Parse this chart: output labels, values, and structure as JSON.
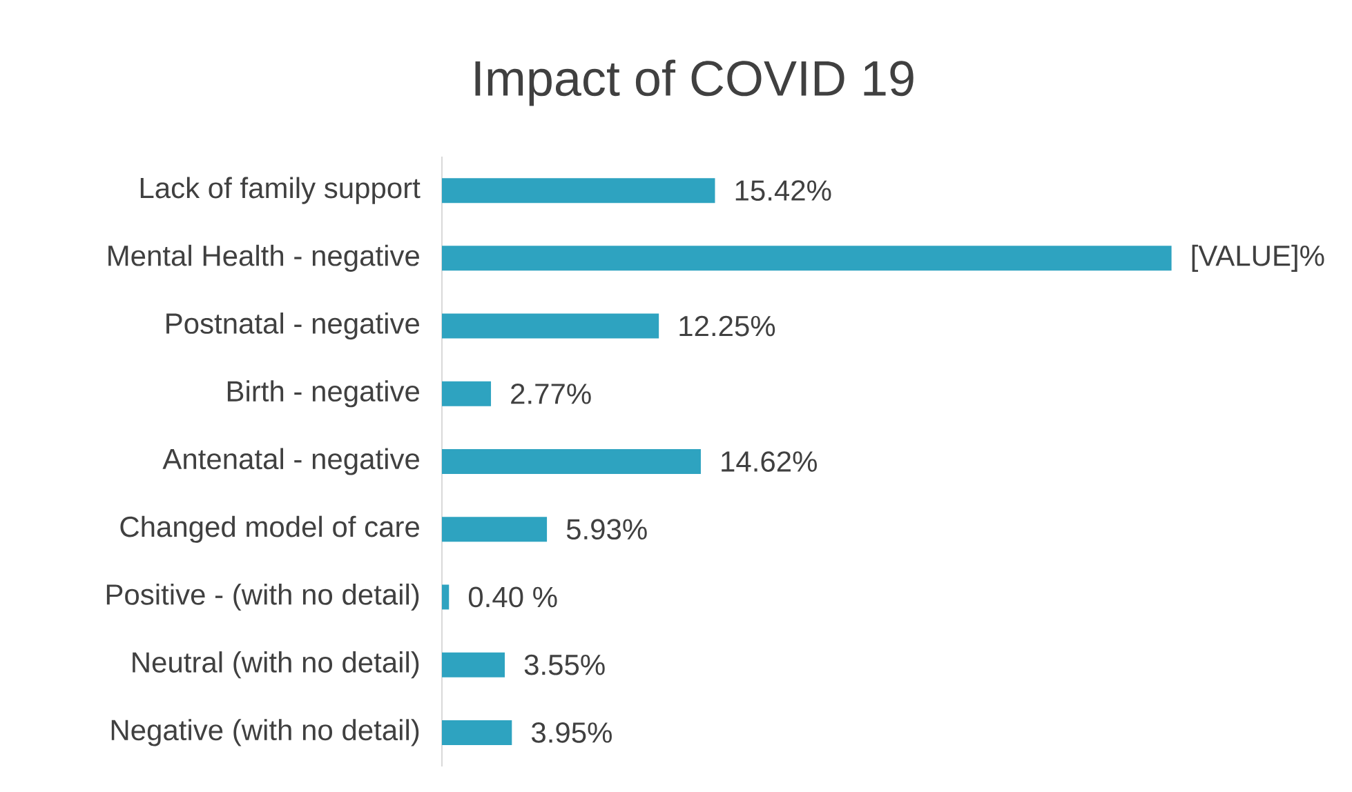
{
  "chart_data": {
    "type": "bar",
    "orientation": "horizontal",
    "title": "Impact of COVID 19",
    "categories": [
      "Lack of family support",
      "Mental Health - negative",
      "Postnatal - negative",
      "Birth - negative",
      "Antenatal - negative",
      "Changed model of care",
      "Positive - (with no detail)",
      "Neutral (with no detail)",
      "Negative (with no detail)"
    ],
    "values": [
      15.42,
      41.2,
      12.25,
      2.77,
      14.62,
      5.93,
      0.4,
      3.55,
      3.95
    ],
    "value_labels": [
      "15.42%",
      "[VALUE]%",
      "12.25%",
      "2.77%",
      "14.62%",
      "5.93%",
      "0.40 %",
      "3.55%",
      "3.95%"
    ],
    "color": "#2ea3c0"
  }
}
